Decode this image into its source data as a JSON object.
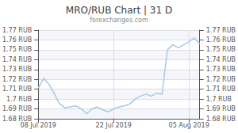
{
  "chart_data": {
    "type": "line",
    "title": "MRO/RUB Chart | 31 D",
    "subtitle": "forexchanges.com",
    "categories": [
      "08 Jul 2019",
      null,
      null,
      null,
      null,
      null,
      null,
      null,
      null,
      null,
      null,
      null,
      null,
      null,
      "22 Jul 2019",
      null,
      null,
      null,
      null,
      null,
      null,
      null,
      null,
      null,
      null,
      null,
      null,
      null,
      "05 Aug 2019",
      null,
      null
    ],
    "values": [
      1.711,
      1.721,
      1.715,
      1.705,
      1.695,
      1.691,
      1.692,
      1.693,
      1.69,
      1.685,
      1.69,
      1.692,
      1.689,
      1.687,
      1.69,
      1.692,
      1.693,
      1.695,
      1.7,
      1.703,
      1.705,
      1.703,
      1.706,
      1.705,
      1.75,
      1.755,
      1.752,
      1.755,
      1.758,
      1.762,
      1.756
    ],
    "color": "#a8c8e8",
    "ylim": [
      1.68,
      1.77
    ],
    "yticks": [
      {
        "value": 1.68,
        "label": "1.68 RUB"
      },
      {
        "value": 1.69,
        "label": "1.69 RUB"
      },
      {
        "value": 1.7,
        "label": "1.7 RUB"
      },
      {
        "value": 1.71,
        "label": "1.71 RUB"
      },
      {
        "value": 1.72,
        "label": "1.72 RUB"
      },
      {
        "value": 1.73,
        "label": "1.73 RUB"
      },
      {
        "value": 1.74,
        "label": "1.74 RUB"
      },
      {
        "value": 1.75,
        "label": "1.75 RUB"
      },
      {
        "value": 1.76,
        "label": "1.76 RUB"
      },
      {
        "value": 1.77,
        "label": "1.77 RUB"
      }
    ],
    "y2lim": [
      1.68,
      1.77
    ],
    "y2ticks": [
      {
        "value": 1.68,
        "label": "1.68 RUB"
      },
      {
        "value": 1.69,
        "label": "1.69 RUB"
      },
      {
        "value": 1.7,
        "label": "1.7 RUB"
      },
      {
        "value": 1.71,
        "label": "1.71 RUB"
      },
      {
        "value": 1.72,
        "label": "1.72 RUB"
      },
      {
        "value": 1.73,
        "label": "1.73 RUB"
      },
      {
        "value": 1.74,
        "label": "1.74 RUB"
      },
      {
        "value": 1.75,
        "label": "1.75 RUB"
      },
      {
        "value": 1.76,
        "label": "1.76 RUB"
      },
      {
        "value": 1.77,
        "label": "1.77 RUB"
      }
    ],
    "grid": true
  }
}
